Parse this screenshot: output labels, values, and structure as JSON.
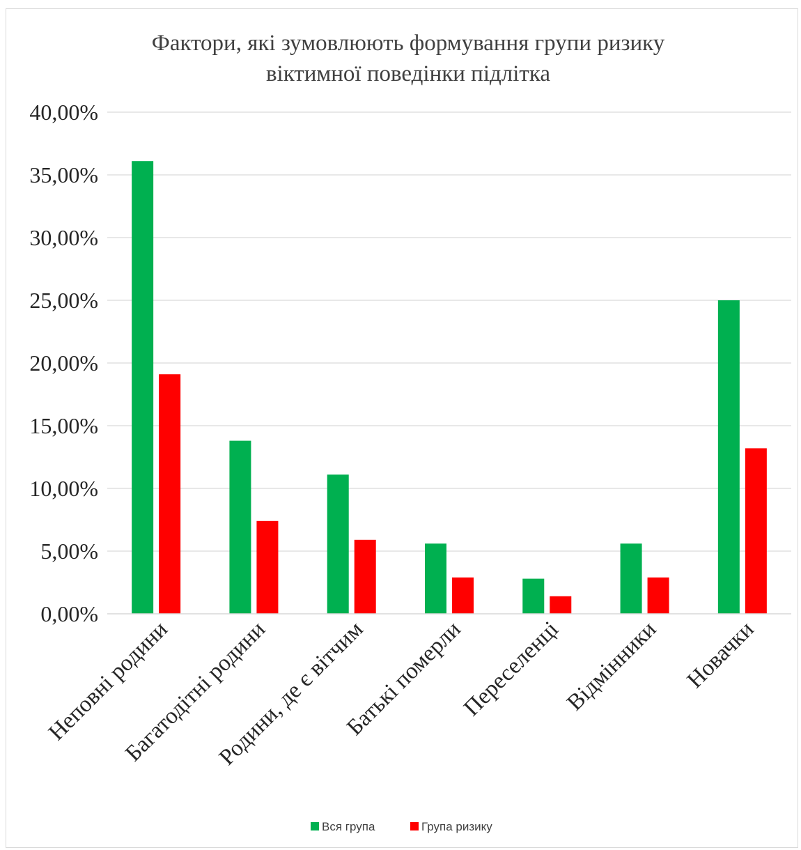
{
  "chart_data": {
    "type": "bar",
    "title_lines": [
      "Фактори, які зумовлюють формування групи ризику",
      "віктимної поведінки підлітка"
    ],
    "categories": [
      "Неповні родини",
      "Багатодітні родини",
      "Родини, де є вітчим",
      "Батькі померли",
      "Переселенці",
      "Відмінники",
      "Новачки"
    ],
    "series": [
      {
        "name": "Вся група",
        "color": "#00b050",
        "values": [
          36.1,
          13.8,
          11.1,
          5.6,
          2.8,
          5.6,
          25.0
        ]
      },
      {
        "name": "Група ризику",
        "color": "#ff0000",
        "values": [
          19.1,
          7.4,
          5.9,
          2.9,
          1.4,
          2.9,
          13.2
        ]
      }
    ],
    "y_ticks": [
      "0,00%",
      "5,00%",
      "10,00%",
      "15,00%",
      "20,00%",
      "25,00%",
      "30,00%",
      "35,00%",
      "40,00%"
    ],
    "ylim": [
      0,
      40
    ],
    "grid": true,
    "legend_position": "bottom"
  }
}
